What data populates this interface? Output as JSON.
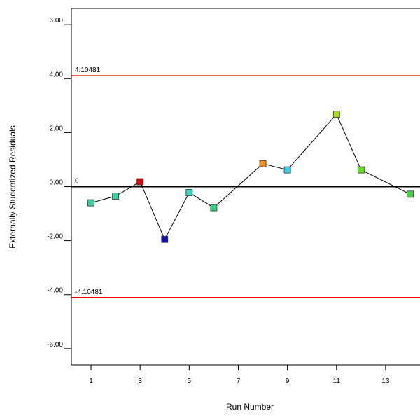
{
  "chart_data": {
    "type": "scatter",
    "xlabel": "Run Number",
    "ylabel": "Externally Studentized Residuals",
    "xlim": [
      0.2,
      14.4
    ],
    "ylim": [
      -6.6,
      6.6
    ],
    "xticks": [
      1,
      3,
      5,
      7,
      9,
      11,
      13
    ],
    "xtick_labels": [
      "1",
      "3",
      "5",
      "7",
      "9",
      "11",
      "13"
    ],
    "yticks": [
      6,
      4,
      2,
      0,
      -2,
      -4,
      -6
    ],
    "ytick_labels": [
      "6.00",
      "4.00",
      "2.00",
      "0.00",
      "-2.00",
      "-4.00",
      "-6.00"
    ],
    "reference_lines": [
      {
        "value": 4.10481,
        "label": "4.10481",
        "color": "#e00000"
      },
      {
        "value": 0,
        "label": "0",
        "color": "#000000"
      },
      {
        "value": -4.10481,
        "label": "-4.10481",
        "color": "#e00000"
      }
    ],
    "series": [
      {
        "connected": true,
        "line_color": "#000000",
        "points": [
          {
            "x": 1,
            "y": -0.6,
            "color": "#33d6a0"
          },
          {
            "x": 2,
            "y": -0.35,
            "color": "#33d6a0"
          },
          {
            "x": 3,
            "y": 0.18,
            "color": "#e00000"
          },
          {
            "x": 4,
            "y": -1.95,
            "color": "#1010b0"
          },
          {
            "x": 5,
            "y": -0.22,
            "color": "#33d6c0"
          },
          {
            "x": 6,
            "y": -0.78,
            "color": "#33d680"
          },
          {
            "x": 8,
            "y": 0.85,
            "color": "#f09020"
          },
          {
            "x": 9,
            "y": 0.62,
            "color": "#30d0f0"
          },
          {
            "x": 11,
            "y": 2.68,
            "color": "#a8e020"
          },
          {
            "x": 12,
            "y": 0.62,
            "color": "#60e020"
          },
          {
            "x": 14,
            "y": -0.28,
            "color": "#40d840"
          }
        ]
      }
    ]
  }
}
